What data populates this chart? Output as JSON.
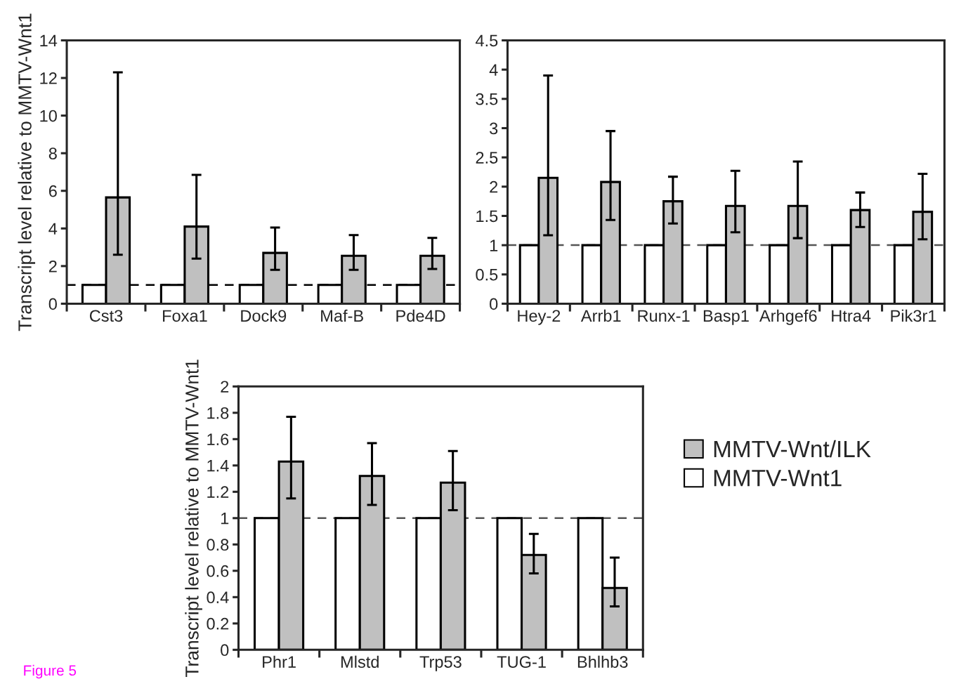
{
  "chart_data": [
    {
      "type": "bar",
      "ylabel": "Transcript level relative to MMTV-Wnt1",
      "categories": [
        "Cst3",
        "Foxa1",
        "Dock9",
        "Maf-B",
        "Pde4D"
      ],
      "series": [
        {
          "color": "#ffffff",
          "values": [
            1,
            1,
            1,
            1,
            1
          ]
        },
        {
          "color": "#c0c0c0",
          "values": [
            5.65,
            4.1,
            2.7,
            2.55,
            2.55
          ],
          "errors": [
            [
              2.6,
              12.3
            ],
            [
              2.4,
              6.85
            ],
            [
              1.8,
              4.05
            ],
            [
              1.8,
              3.65
            ],
            [
              1.85,
              3.5
            ]
          ]
        }
      ],
      "ylim": [
        0,
        14
      ],
      "yticks": [
        0,
        2,
        4,
        6,
        8,
        10,
        12,
        14
      ],
      "ref_lines": [
        {
          "axis": "y",
          "value": 1,
          "line_style": "dashed",
          "color": "#000000"
        }
      ]
    },
    {
      "type": "bar",
      "categories": [
        "Hey-2",
        "Arrb1",
        "Runx-1",
        "Basp1",
        "Arhgef6",
        "Htra4",
        "Pik3r1"
      ],
      "series": [
        {
          "color": "#ffffff",
          "values": [
            1,
            1,
            1,
            1,
            1,
            1,
            1
          ]
        },
        {
          "color": "#c0c0c0",
          "values": [
            2.15,
            2.08,
            1.75,
            1.67,
            1.67,
            1.6,
            1.57
          ],
          "errors": [
            [
              1.17,
              3.9
            ],
            [
              1.43,
              2.95
            ],
            [
              1.37,
              2.17
            ],
            [
              1.22,
              2.27
            ],
            [
              1.12,
              2.43
            ],
            [
              1.31,
              1.9
            ],
            [
              1.1,
              2.22
            ]
          ]
        }
      ],
      "ylim": [
        0,
        4.5
      ],
      "yticks": [
        0,
        0.5,
        1,
        1.5,
        2,
        2.5,
        3,
        3.5,
        4,
        4.5
      ],
      "ref_lines": [
        {
          "axis": "y",
          "value": 1,
          "line_style": "dashed",
          "color": "#555555"
        }
      ]
    },
    {
      "type": "bar",
      "ylabel": "Transcript level relative to MMTV-Wnt1",
      "categories": [
        "Phr1",
        "Mlstd",
        "Trp53",
        "TUG-1",
        "Bhlhb3"
      ],
      "series": [
        {
          "name": "MMTV-Wnt1",
          "color": "#ffffff",
          "values": [
            1,
            1,
            1,
            1,
            1
          ]
        },
        {
          "name": "MMTV-Wnt/ILK",
          "color": "#c0c0c0",
          "values": [
            1.43,
            1.32,
            1.27,
            0.72,
            0.47
          ],
          "errors": [
            [
              1.15,
              1.77
            ],
            [
              1.1,
              1.57
            ],
            [
              1.06,
              1.51
            ],
            [
              0.58,
              0.88
            ],
            [
              0.33,
              0.7
            ]
          ]
        }
      ],
      "ylim": [
        0,
        2
      ],
      "yticks": [
        0,
        0.2,
        0.4,
        0.6,
        0.8,
        1,
        1.2,
        1.4,
        1.6,
        1.8,
        2
      ],
      "ref_lines": [
        {
          "axis": "y",
          "value": 1,
          "line_style": "dashed",
          "color": "#555555"
        }
      ],
      "legend": "right",
      "annotations": [
        "Figure 5"
      ]
    }
  ]
}
